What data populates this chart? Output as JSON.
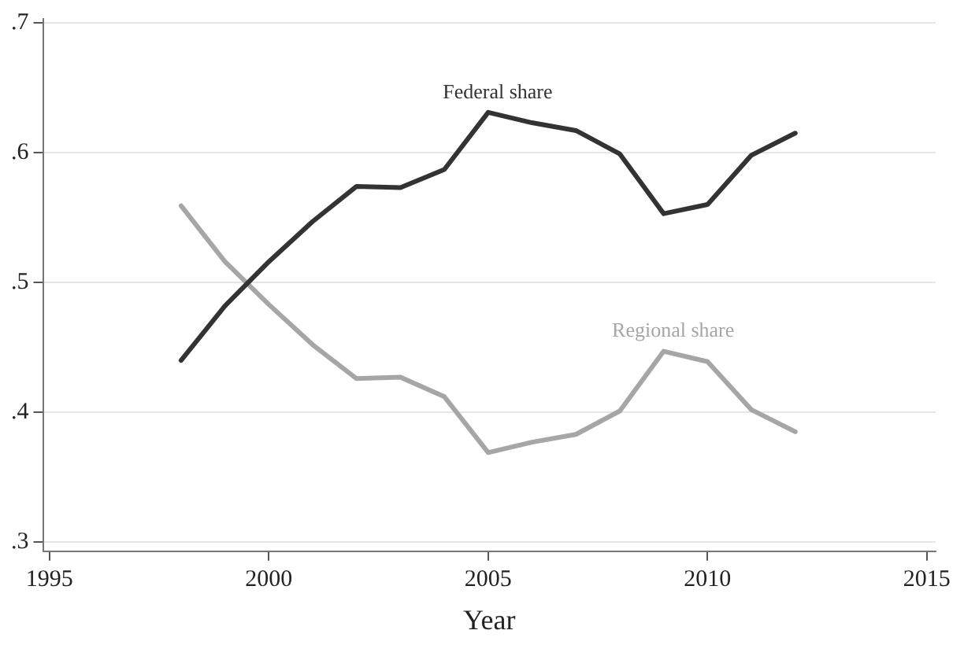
{
  "chart_data": {
    "type": "line",
    "xlabel": "Year",
    "x": [
      1998,
      1999,
      2000,
      2001,
      2002,
      2003,
      2004,
      2005,
      2006,
      2007,
      2008,
      2009,
      2010,
      2011,
      2012
    ],
    "series": [
      {
        "name": "Federal share",
        "color": "#333333",
        "values": [
          0.44,
          0.482,
          0.516,
          0.547,
          0.574,
          0.573,
          0.587,
          0.631,
          0.623,
          0.617,
          0.599,
          0.553,
          0.56,
          0.598,
          0.615
        ]
      },
      {
        "name": "Regional share",
        "color": "#a6a6a6",
        "values": [
          0.559,
          0.516,
          0.483,
          0.452,
          0.426,
          0.427,
          0.412,
          0.369,
          0.377,
          0.383,
          0.401,
          0.447,
          0.439,
          0.402,
          0.385
        ]
      }
    ],
    "xlim": [
      1994.85,
      2015.2
    ],
    "xticks": [
      1995,
      2000,
      2005,
      2010,
      2015
    ],
    "ylim": [
      0.293,
      0.703
    ],
    "yticks": [
      {
        "value": 0.3,
        "label": ".3"
      },
      {
        "value": 0.4,
        "label": ".4"
      },
      {
        "value": 0.5,
        "label": ".5"
      },
      {
        "value": 0.6,
        "label": ".6"
      },
      {
        "value": 0.7,
        "label": ".7"
      }
    ],
    "grid": "y",
    "legend": false,
    "marker": "none",
    "line_style": "solid"
  }
}
